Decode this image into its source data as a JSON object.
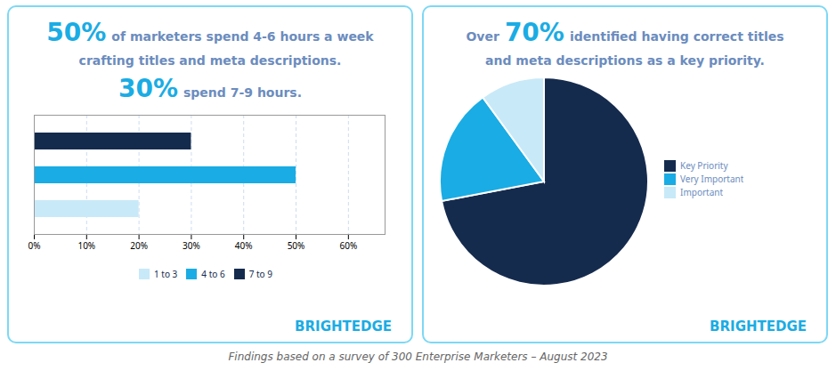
{
  "caption": "Findings based on a survey of 300 Enterprise Marketers – August 2023",
  "chart_data": [
    {
      "type": "bar",
      "orientation": "horizontal",
      "annotations": [
        "50%",
        "of marketers spend 4-6 hours a week",
        "crafting titles and meta descriptions.",
        "30%",
        "spend 7-9 hours.",
        "BRIGHTEDGE"
      ],
      "categories": [
        "7 to 9",
        "4 to 6",
        "1 to 3"
      ],
      "values": [
        30,
        50,
        20
      ],
      "colors": [
        "#152B4E",
        "#1AACE4",
        "#C8E9F8"
      ],
      "xlim": [
        0,
        67
      ],
      "xticks": [
        {
          "value": 0,
          "label": "0%"
        },
        {
          "value": 10,
          "label": "10%"
        },
        {
          "value": 20,
          "label": "20%"
        },
        {
          "value": 30,
          "label": "30%"
        },
        {
          "value": 40,
          "label": "40%"
        },
        {
          "value": 50,
          "label": "50%"
        },
        {
          "value": 60,
          "label": "60%"
        }
      ],
      "grid": true,
      "legend": "bottom",
      "tick_labels": "x"
    },
    {
      "type": "pie",
      "annotations": [
        "Over",
        "70%",
        "identified having correct titles",
        "and meta descriptions as a key priority.",
        "BRIGHTEDGE"
      ],
      "categories": [
        "Key Priority",
        "Very Important",
        "Important"
      ],
      "values": [
        72,
        18,
        10
      ],
      "colors": [
        "#152B4E",
        "#1AACE4",
        "#C8E9F8"
      ],
      "legend": "right"
    }
  ]
}
